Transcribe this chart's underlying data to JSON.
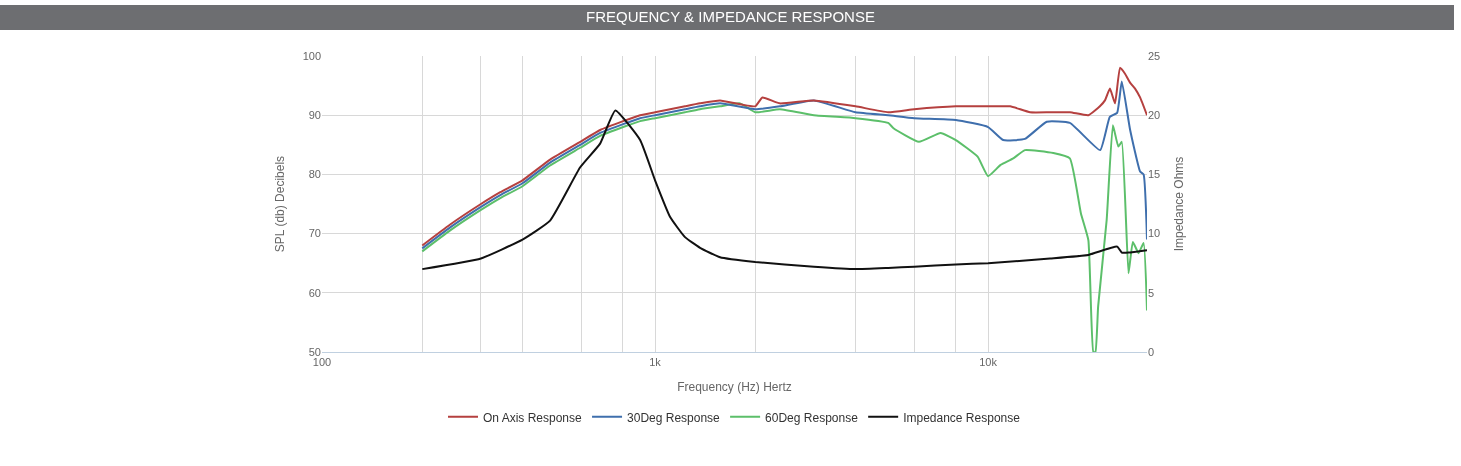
{
  "chart_data": {
    "type": "line",
    "title": "FREQUENCY & IMPEDANCE RESPONSE",
    "xlabel": "Frequency (Hz) Hertz",
    "ylabel": "SPL (db) Decibels",
    "y2label": "Impedance Ohms",
    "log": "x",
    "grid": true,
    "legend": "bottom",
    "marker": "none",
    "line_style": "solid",
    "xlim": [
      100,
      30000
    ],
    "xticks": [
      {
        "value": 100,
        "label": "100"
      },
      {
        "value": 200,
        "label": null
      },
      {
        "value": 300,
        "label": null
      },
      {
        "value": 400,
        "label": null
      },
      {
        "value": 600,
        "label": null
      },
      {
        "value": 800,
        "label": null
      },
      {
        "value": 1000,
        "label": "1k"
      },
      {
        "value": 2000,
        "label": null
      },
      {
        "value": 4000,
        "label": null
      },
      {
        "value": 6000,
        "label": null
      },
      {
        "value": 8000,
        "label": null
      },
      {
        "value": 10000,
        "label": "10k"
      }
    ],
    "ylim": [
      50,
      100
    ],
    "yticks": [
      50,
      60,
      70,
      80,
      90,
      100
    ],
    "y2lim": [
      0,
      25
    ],
    "y2ticks": [
      0,
      5,
      10,
      15,
      20,
      25
    ],
    "series": [
      {
        "name": "On Axis Response",
        "color": "#b5403f",
        "x": [
          200,
          242,
          300,
          343,
          400,
          484,
          596,
          684,
          802,
          902,
          1000,
          1110,
          1230,
          1365,
          1567,
          2000,
          2100,
          2370,
          3000,
          4000,
          5010,
          6000,
          8000,
          10000,
          11650,
          13370,
          15350,
          17620,
          20000,
          21660,
          22430,
          23220,
          24050,
          24890,
          25770,
          26680,
          27620,
          28600,
          30000
        ],
        "values": [
          68,
          71.5,
          75,
          77,
          79,
          82.5,
          85.5,
          87.5,
          89,
          90,
          90.5,
          91,
          91.5,
          92,
          92.5,
          91.5,
          93,
          92,
          92.5,
          91.5,
          90.5,
          91,
          91.5,
          91.5,
          91.5,
          90.5,
          90.5,
          90.5,
          90,
          91.5,
          92.5,
          94.5,
          92,
          98,
          97,
          95.5,
          94.5,
          93,
          90
        ]
      },
      {
        "name": "30Deg Response",
        "color": "#3f6fad",
        "x": [
          200,
          242,
          300,
          343,
          400,
          484,
          596,
          684,
          802,
          902,
          1000,
          1110,
          1230,
          1365,
          1567,
          2000,
          2370,
          3000,
          4000,
          5010,
          6000,
          8000,
          10000,
          11100,
          12900,
          15000,
          17600,
          21700,
          23200,
          24400,
          25200,
          26700,
          28600,
          29300,
          30000
        ],
        "values": [
          67.5,
          71,
          74.5,
          76.5,
          78.5,
          82,
          85,
          87,
          88.5,
          89.5,
          90,
          90.5,
          91,
          91.5,
          92,
          91,
          91.5,
          92.5,
          90.5,
          90,
          89.5,
          89.2,
          88,
          85.8,
          86,
          88.9,
          88.7,
          84.1,
          89.7,
          90.4,
          95.7,
          87.5,
          80.5,
          80,
          69
        ]
      },
      {
        "name": "60Deg Response",
        "color": "#5cbf6a",
        "x": [
          200,
          242,
          300,
          343,
          400,
          484,
          596,
          684,
          802,
          902,
          1000,
          1110,
          1230,
          1365,
          1567,
          1800,
          2000,
          2370,
          3000,
          4000,
          5010,
          5200,
          6200,
          7200,
          8000,
          9300,
          10000,
          10900,
          11900,
          12900,
          15700,
          17600,
          19000,
          20000,
          20700,
          21000,
          21400,
          22700,
          23700,
          24600,
          25200,
          26400,
          27200,
          28300,
          29300,
          30000
        ],
        "values": [
          67,
          70.5,
          74,
          76,
          78,
          81.5,
          84.5,
          86.5,
          88,
          89,
          89.5,
          90,
          90.5,
          91,
          91.5,
          92,
          90.5,
          91,
          90,
          89.5,
          88.7,
          87.8,
          85.5,
          87,
          85.8,
          83,
          79.7,
          81.6,
          82.7,
          84.1,
          83.6,
          82.7,
          73.4,
          68.9,
          50,
          50,
          57.7,
          72.3,
          88.3,
          84.7,
          85.5,
          63.3,
          68.6,
          66.7,
          68.4,
          57
        ]
      },
      {
        "name": "Impedance Response",
        "color": "#111111",
        "axis": "y2",
        "x": [
          200,
          300,
          400,
          484,
          596,
          684,
          760,
          902,
          1000,
          1110,
          1230,
          1365,
          1567,
          2000,
          3000,
          4000,
          5010,
          6000,
          8000,
          10000,
          15350,
          20000,
          24400,
          25200,
          26400,
          30000
        ],
        "values": [
          7.0,
          7.9,
          9.5,
          11.1,
          15.6,
          17.6,
          20.4,
          17.9,
          14.5,
          11.4,
          9.7,
          8.8,
          8,
          7.6,
          7.2,
          7.0,
          7.1,
          7.2,
          7.4,
          7.5,
          7.9,
          8.2,
          8.9,
          8.4,
          8.4,
          8.6
        ]
      }
    ]
  }
}
